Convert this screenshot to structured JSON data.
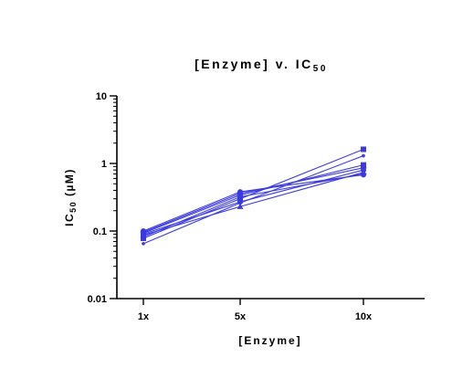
{
  "chart_data": {
    "type": "line",
    "title": "[Enzyme] v. IC",
    "title_subscript": "50",
    "xlabel": "[Enzyme]",
    "ylabel_parts": [
      "IC",
      "50",
      " (",
      "µM",
      ")"
    ],
    "categories": [
      "1x",
      "5x",
      "10x"
    ],
    "y_scale": "log",
    "ylim": [
      0.01,
      10
    ],
    "y_ticks": [
      {
        "value": 0.01,
        "label": "0.01"
      },
      {
        "value": 0.1,
        "label": "0.1"
      },
      {
        "value": 1,
        "label": "1"
      },
      {
        "value": 10,
        "label": "10"
      }
    ],
    "grid": false,
    "legend": "none",
    "series_color": "#3a3ae0",
    "series": [
      {
        "values": [
          0.065,
          0.26,
          1.3
        ],
        "marker": "dot"
      },
      {
        "values": [
          0.078,
          0.3,
          1.62
        ],
        "marker": "square"
      },
      {
        "values": [
          0.082,
          0.32,
          0.7
        ],
        "marker": "diamond"
      },
      {
        "values": [
          0.087,
          0.23,
          0.74
        ],
        "marker": "triangle"
      },
      {
        "values": [
          0.09,
          0.27,
          0.8
        ],
        "marker": "circle"
      },
      {
        "values": [
          0.093,
          0.34,
          0.95
        ],
        "marker": "square"
      },
      {
        "values": [
          0.096,
          0.36,
          0.86
        ],
        "marker": "diamond"
      },
      {
        "values": [
          0.1,
          0.38,
          0.68
        ],
        "marker": "circle"
      }
    ]
  }
}
